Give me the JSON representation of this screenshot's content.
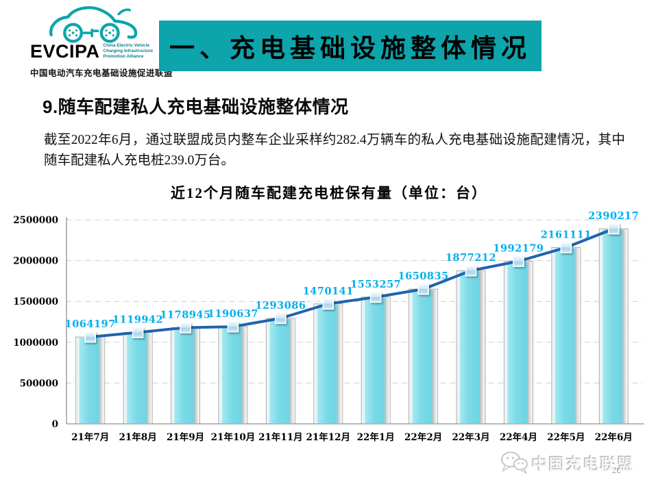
{
  "header": {
    "logo": {
      "acronym": "EVCIPA",
      "tagline_lines": [
        "China Electric Vehicle",
        "Charging Infrastructure",
        "Promotion Alliance"
      ],
      "chinese_name": "中国电动汽车充电基础设施促进联盟",
      "brand_color": "#0da4ab"
    },
    "banner": {
      "title": "一、充电基础设施整体情况",
      "bg_color": "#0da4ab",
      "text_color": "#000000"
    }
  },
  "section": {
    "heading": "9.随车配建私人充电基础设施整体情况",
    "body_text": "截至2022年6月，通过联盟成员内整车企业采样约282.4万辆车的私人充电基础设施配建情况，其中随车配建私人充电桩239.0万台。"
  },
  "chart_data": {
    "type": "bar",
    "subtype": "bar-with-line-overlay",
    "title": "近12个月随车配建充电桩保有量（单位：台）",
    "categories": [
      "21年7月",
      "21年8月",
      "21年9月",
      "21年10月",
      "21年11月",
      "21年12月",
      "22年1月",
      "22年2月",
      "22年3月",
      "22年4月",
      "22年5月",
      "22年6月"
    ],
    "values": [
      1064197,
      1119942,
      1178945,
      1190637,
      1293086,
      1470141,
      1553257,
      1650835,
      1877212,
      1992179,
      2161111,
      2390217
    ],
    "data_labels": [
      "1064197",
      "1119942",
      "1178945",
      "1190637",
      "1293086",
      "1470141",
      "1553257",
      "1650835",
      "1877212",
      "1992179",
      "2161111",
      "2390217"
    ],
    "xlabel": "",
    "ylabel": "",
    "ylim": [
      0,
      2500000
    ],
    "ytick_step": 500000,
    "yticks": [
      "0",
      "500000",
      "1000000",
      "1500000",
      "2000000",
      "2500000"
    ],
    "grid": true,
    "legend": "none",
    "bar_color": "#7bdbe8",
    "bar_side_color": "#c9cbcc",
    "line_color": "#1e63ae",
    "marker_color": "#bfe2f2",
    "label_color": "#00aeef",
    "axis_color": "#8f8f8f",
    "gridline_color": "#c9c9c9"
  },
  "footer": {
    "watermark": "中国充电联盟",
    "page_number": "20"
  }
}
